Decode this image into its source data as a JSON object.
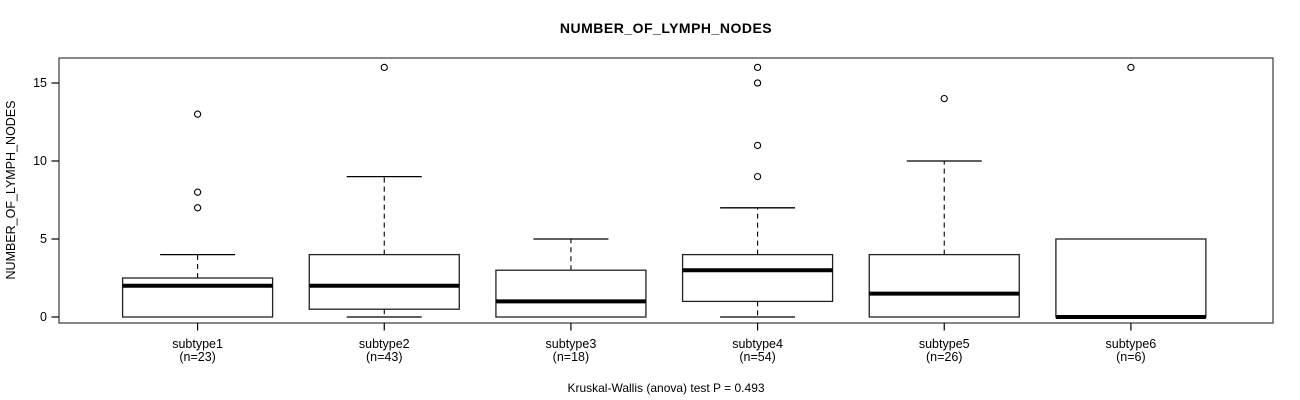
{
  "chart_data": {
    "type": "boxplot",
    "title": "NUMBER_OF_LYMPH_NODES",
    "ylabel": "NUMBER_OF_LYMPH_NODES",
    "xlabel": "",
    "caption": "Kruskal-Wallis (anova) test P = 0.493",
    "ylim": [
      0,
      16
    ],
    "yticks": [
      0,
      5,
      10,
      15
    ],
    "grid": false,
    "legend": "none",
    "groups": [
      {
        "label": "subtype1",
        "n_label": "(n=23)",
        "n": 23,
        "min": 0,
        "q1": 0,
        "median": 2,
        "q3": 2.5,
        "max": 4,
        "outliers": [
          7,
          8,
          13
        ]
      },
      {
        "label": "subtype2",
        "n_label": "(n=43)",
        "n": 43,
        "min": 0,
        "q1": 0.5,
        "median": 2,
        "q3": 4,
        "max": 9,
        "outliers": [
          16
        ]
      },
      {
        "label": "subtype3",
        "n_label": "(n=18)",
        "n": 18,
        "min": 0,
        "q1": 0,
        "median": 1,
        "q3": 3,
        "max": 5,
        "outliers": []
      },
      {
        "label": "subtype4",
        "n_label": "(n=54)",
        "n": 54,
        "min": 0,
        "q1": 1,
        "median": 3,
        "q3": 4,
        "max": 7,
        "outliers": [
          9,
          11,
          15,
          16
        ]
      },
      {
        "label": "subtype5",
        "n_label": "(n=26)",
        "n": 26,
        "min": 0,
        "q1": 0,
        "median": 1.5,
        "q3": 4,
        "max": 10,
        "outliers": [
          14
        ]
      },
      {
        "label": "subtype6",
        "n_label": "(n=6)",
        "n": 6,
        "min": 0,
        "q1": 0,
        "median": 0,
        "q3": 5,
        "max": 5,
        "outliers": [
          16
        ]
      }
    ],
    "colors": {
      "line": "#000000",
      "border": "#555555",
      "median": "#000000",
      "box_fill": "#ffffff",
      "background": "#ffffff"
    }
  }
}
